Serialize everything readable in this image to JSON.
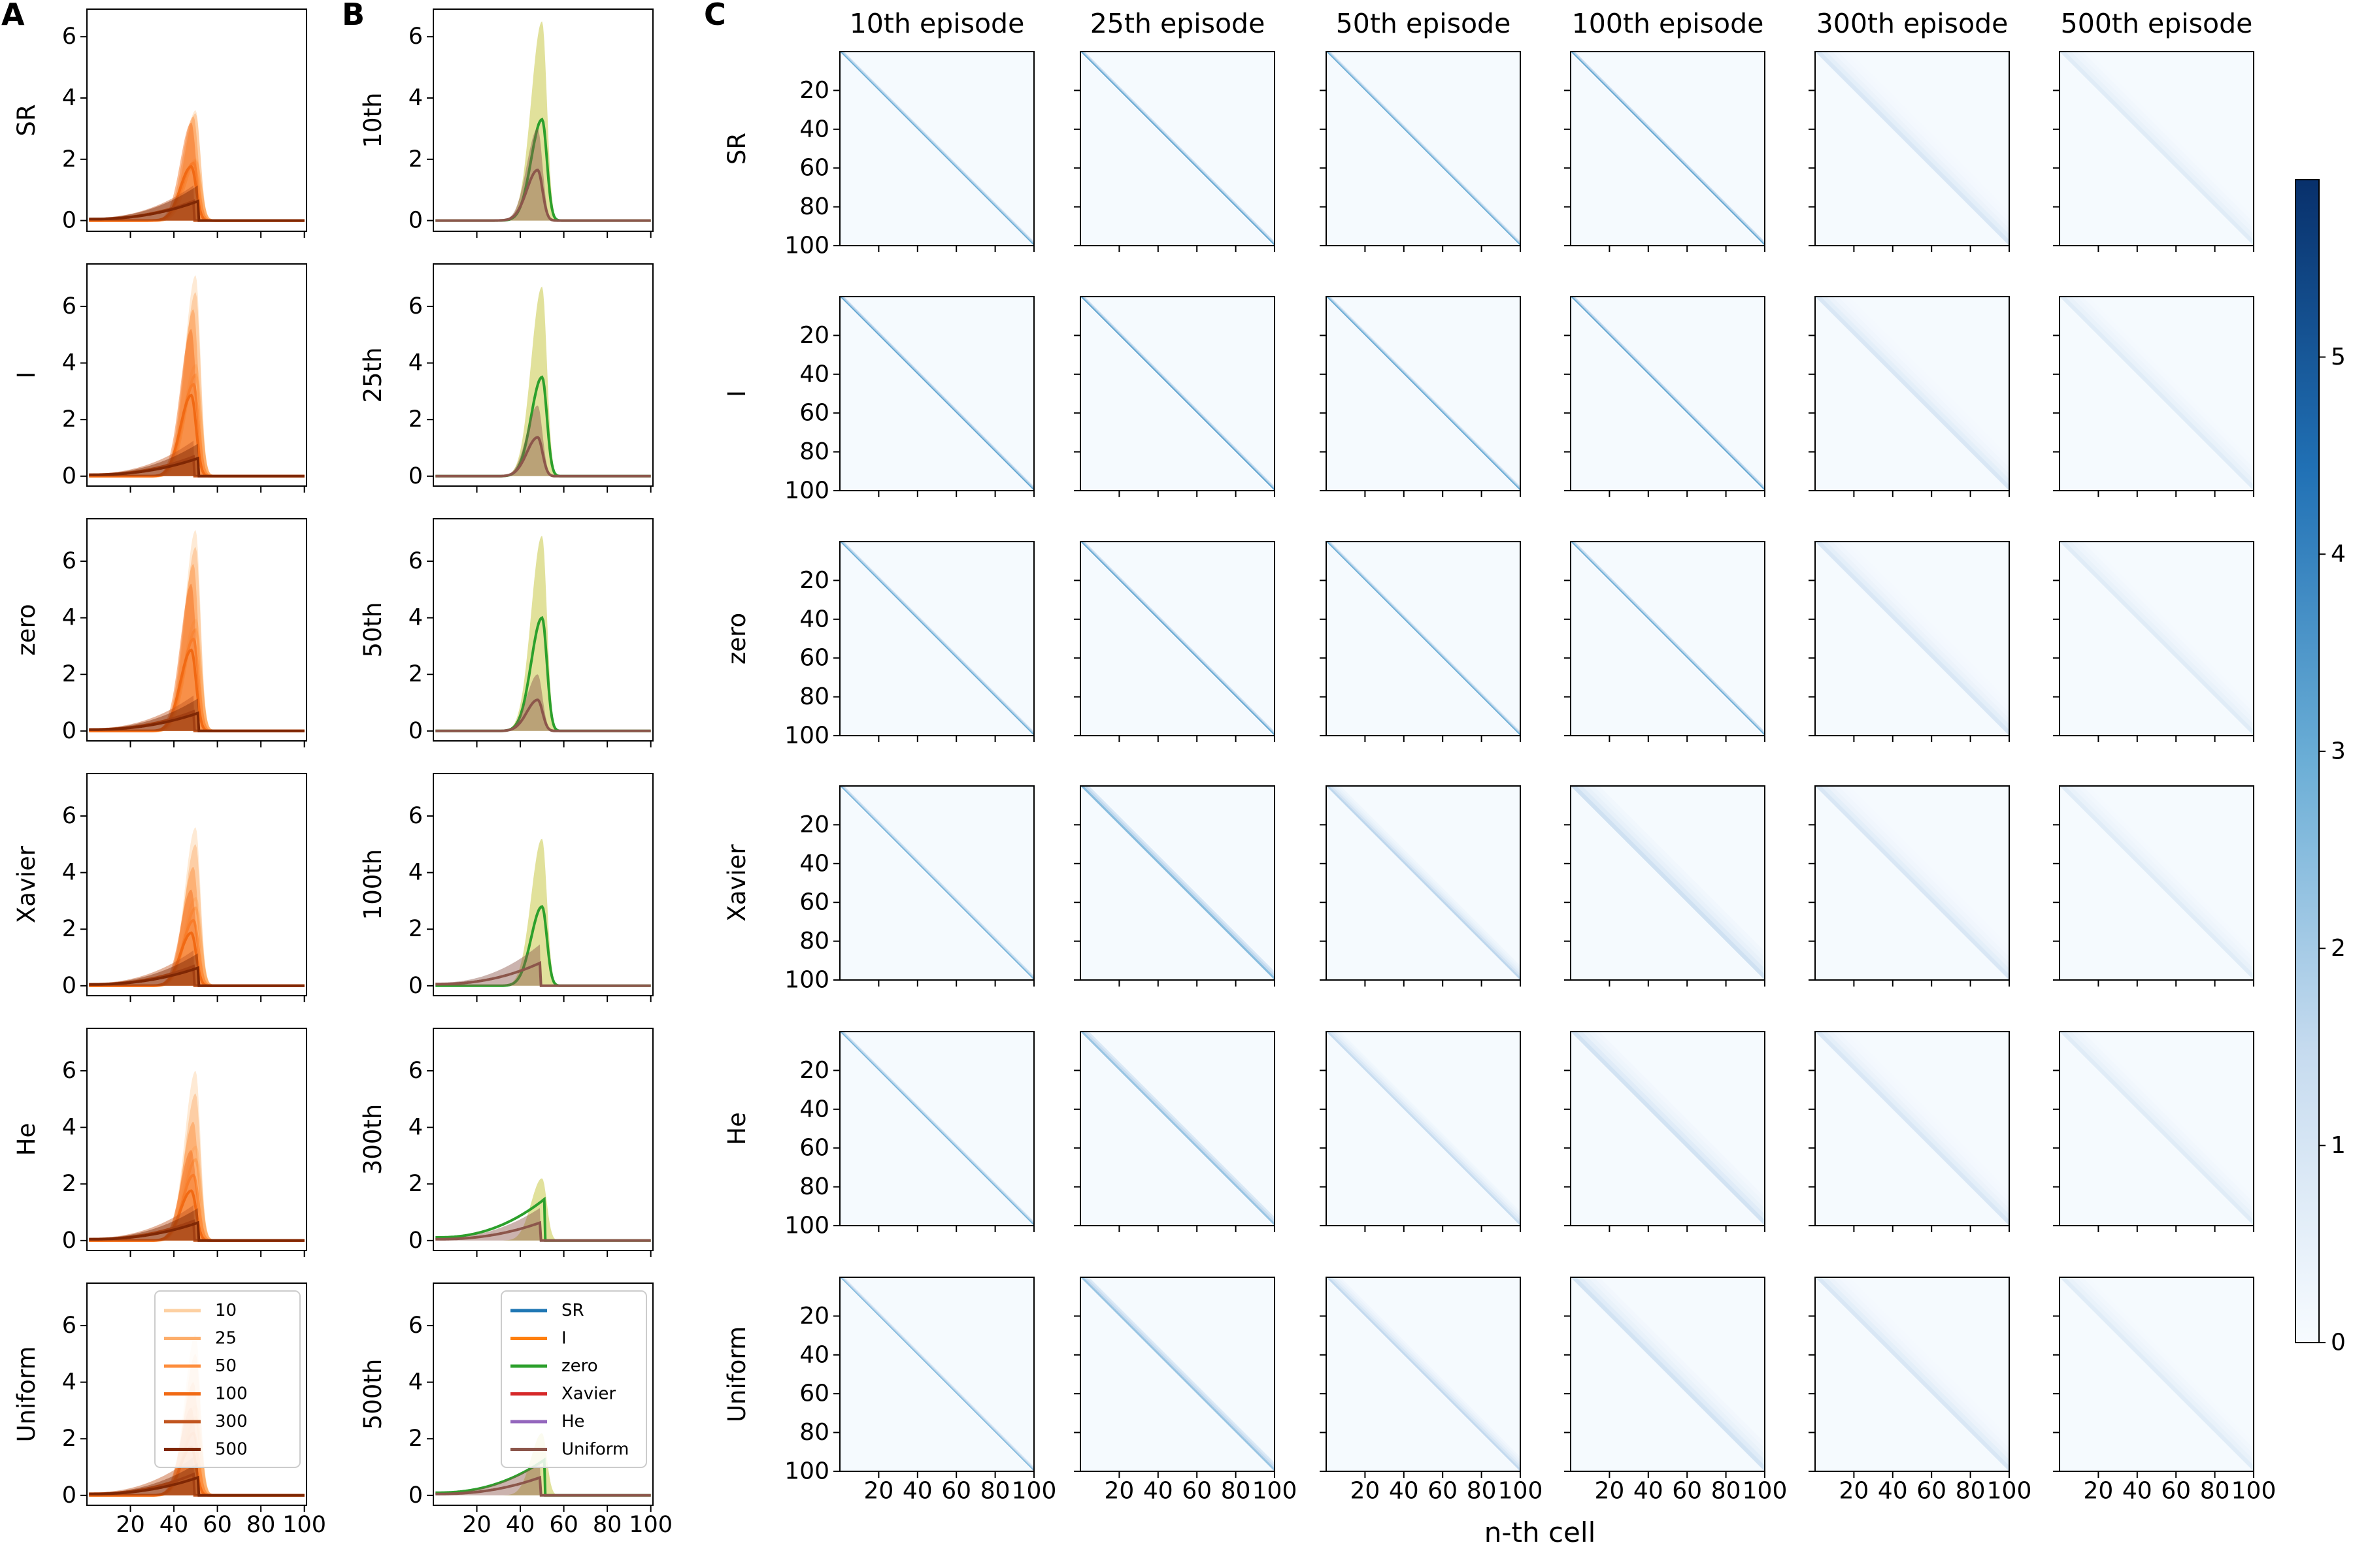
{
  "chart_data": [
    {
      "panel": "A",
      "type": "line",
      "rows": [
        "SR",
        "I",
        "zero",
        "Xavier",
        "He",
        "Uniform"
      ],
      "legend": [
        "10",
        "25",
        "50",
        "100",
        "300",
        "500"
      ],
      "legend_position": "top-right (bottom row)",
      "series_colors": [
        "#fdd0a2",
        "#fdae6b",
        "#fd8d3c",
        "#f16913",
        "#c1551f",
        "#7f2704"
      ],
      "x_ticks": [
        20,
        40,
        60,
        80,
        100
      ],
      "xlim": [
        0,
        101
      ],
      "y_ticks": [
        0,
        2,
        4,
        6
      ],
      "ylim_first_row": [
        -0.35,
        6.9
      ],
      "ylim_other_rows": [
        -0.35,
        7.5
      ],
      "curve_params": {
        "peak_heights": {
          "SR": [
            3.6,
            3.5,
            3.4,
            3.2,
            1.1,
            1.1
          ],
          "I": [
            7.1,
            6.5,
            5.9,
            5.2,
            1.2,
            1.1
          ],
          "zero": [
            7.1,
            6.5,
            5.9,
            5.2,
            1.2,
            1.1
          ],
          "Xavier": [
            5.6,
            5.0,
            4.2,
            3.4,
            1.2,
            1.1
          ],
          "He": [
            6.0,
            5.2,
            4.2,
            3.2,
            1.2,
            1.1
          ],
          "Uniform": [
            5.7,
            5.0,
            4.0,
            3.1,
            1.3,
            1.1
          ]
        },
        "peak_positions": [
          50,
          50,
          49,
          48,
          48,
          50
        ]
      }
    },
    {
      "panel": "B",
      "type": "line",
      "rows": [
        "10th",
        "25th",
        "50th",
        "100th",
        "300th",
        "500th"
      ],
      "legend": [
        "SR",
        "I",
        "zero",
        "Xavier",
        "He",
        "Uniform"
      ],
      "legend_position": "top-right (bottom row)",
      "series_colors": [
        "#1f77b4",
        "#ff7f0e",
        "#2ca02c",
        "#d62728",
        "#9467bd",
        "#8c564b"
      ],
      "band_colors": [
        "#bcbd22",
        "#8c564b"
      ],
      "x_ticks": [
        20,
        40,
        60,
        80,
        100
      ],
      "xlim": [
        0,
        101
      ],
      "y_ticks": [
        0,
        2,
        4,
        6
      ],
      "ylim_first_row": [
        -0.35,
        6.9
      ],
      "ylim_other_rows": [
        -0.35,
        7.5
      ],
      "curve_params": {
        "peak_heights": [
          [
            6.5,
            3.3,
            3.0
          ],
          [
            6.7,
            3.5,
            2.5
          ],
          [
            6.9,
            4.0,
            2.0
          ],
          [
            5.2,
            2.8,
            1.4
          ],
          [
            2.2,
            1.4,
            1.1
          ],
          [
            2.2,
            1.2,
            1.1
          ]
        ]
      }
    },
    {
      "panel": "C",
      "type": "heatmap",
      "rows": [
        "SR",
        "I",
        "zero",
        "Xavier",
        "He",
        "Uniform"
      ],
      "columns": [
        "10th episode",
        "25th episode",
        "50th episode",
        "100th episode",
        "300th episode",
        "500th episode"
      ],
      "xlabel": "n-th cell",
      "x_ticks": [
        20,
        40,
        60,
        80,
        100
      ],
      "y_ticks": [
        20,
        40,
        60,
        80,
        100
      ],
      "colormap": "Blues",
      "colorbar": {
        "ticks": [
          0,
          1,
          2,
          3,
          4,
          5
        ],
        "range": [
          0,
          5.9
        ]
      },
      "diagonal_intensity": [
        [
          3.0,
          3.2,
          3.0,
          3.2,
          0.9,
          0.7
        ],
        [
          3.2,
          3.3,
          3.1,
          3.2,
          0.9,
          0.7
        ],
        [
          3.0,
          3.2,
          3.0,
          3.0,
          0.9,
          0.7
        ],
        [
          2.8,
          2.5,
          1.6,
          1.2,
          0.9,
          0.7
        ],
        [
          2.8,
          2.2,
          1.4,
          1.1,
          0.9,
          0.7
        ],
        [
          2.6,
          2.2,
          1.5,
          1.1,
          0.9,
          0.7
        ]
      ]
    }
  ],
  "labels": {
    "panelA": "A",
    "panelB": "B",
    "panelC": "C"
  }
}
